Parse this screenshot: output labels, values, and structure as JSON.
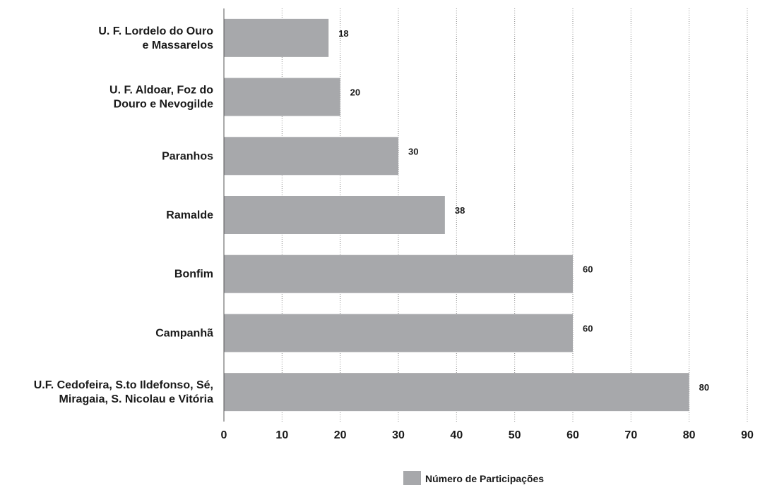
{
  "chart_data": {
    "type": "bar",
    "orientation": "horizontal",
    "categories": [
      [
        "U. F. Lordelo do Ouro",
        "e Massarelos"
      ],
      [
        "U. F. Aldoar, Foz do",
        "Douro e Nevogilde"
      ],
      [
        "Paranhos"
      ],
      [
        "Ramalde"
      ],
      [
        "Bonfim"
      ],
      [
        "Campanhã"
      ],
      [
        "U.F. Cedofeira, S.to Ildefonso, Sé,",
        "Miragaia, S. Nicolau e Vitória"
      ]
    ],
    "series": [
      {
        "name": "Número de Participações",
        "values": [
          18,
          20,
          30,
          38,
          60,
          60,
          80
        ],
        "color": "#a7a8ab"
      }
    ],
    "xlim": [
      0,
      90
    ],
    "xticks": [
      0,
      10,
      20,
      30,
      40,
      50,
      60,
      70,
      80,
      90
    ],
    "grid": true,
    "legend": "bottom-center",
    "title": "",
    "xlabel": "",
    "ylabel": ""
  }
}
